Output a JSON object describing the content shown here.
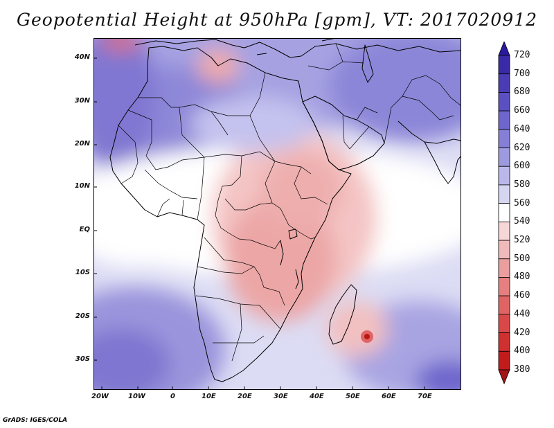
{
  "title": "Geopotential Height at 950hPa [gpm], VT: 2017020912",
  "credit": "GrADS: IGES/COLA",
  "map": {
    "variable": "Geopotential Height",
    "level": "950hPa",
    "units": "gpm",
    "valid_time": "2017020912",
    "lon_range": [
      -24,
      79
    ],
    "lat_range": [
      -37,
      45
    ],
    "x_ticks": [
      "20W",
      "10W",
      "0",
      "10E",
      "20E",
      "30E",
      "40E",
      "50E",
      "60E",
      "70E"
    ],
    "y_ticks": [
      "40N",
      "30N",
      "20N",
      "10N",
      "EQ",
      "10S",
      "20S",
      "30S"
    ]
  },
  "colorbar": {
    "levels": [
      "720",
      "700",
      "680",
      "660",
      "640",
      "620",
      "600",
      "580",
      "560",
      "540",
      "520",
      "500",
      "480",
      "460",
      "440",
      "420",
      "400",
      "380"
    ],
    "colors": [
      "#2a1a9e",
      "#3a2aa8",
      "#4a3cb4",
      "#5a50c2",
      "#6e66cc",
      "#8580d6",
      "#9e9ae0",
      "#bab8ea",
      "#d6d6f2",
      "#ffffff",
      "#f6d6d6",
      "#f1baba",
      "#ea9e9e",
      "#e68080",
      "#e06464",
      "#d94848",
      "#cf3030",
      "#c01c1c",
      "#a41414"
    ]
  }
}
